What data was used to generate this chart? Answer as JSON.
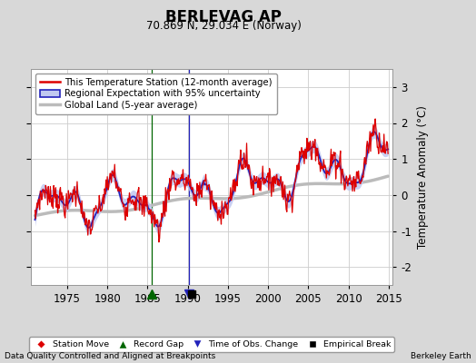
{
  "title": "BERLEVAG AP",
  "subtitle": "70.869 N, 29.034 E (Norway)",
  "footer_left": "Data Quality Controlled and Aligned at Breakpoints",
  "footer_right": "Berkeley Earth",
  "ylabel": "Temperature Anomaly (°C)",
  "xlim": [
    1970.5,
    2015.5
  ],
  "ylim": [
    -2.5,
    3.5
  ],
  "yticks": [
    -2,
    -1,
    0,
    1,
    2,
    3
  ],
  "xticks": [
    1975,
    1980,
    1985,
    1990,
    1995,
    2000,
    2005,
    2010,
    2015
  ],
  "background_color": "#d8d8d8",
  "plot_bg_color": "#ffffff",
  "red_color": "#dd0000",
  "blue_color": "#2222bb",
  "blue_fill_color": "#c0c8f0",
  "gray_color": "#bbbbbb",
  "grid_color": "#cccccc",
  "record_gap_x": 1985.5,
  "obs_change_x": 1990.2,
  "empirical_break_x": 1990.5
}
